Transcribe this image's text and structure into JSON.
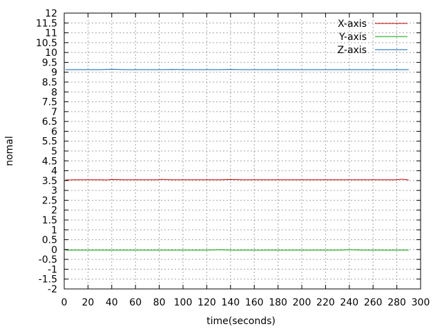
{
  "chart_data": {
    "type": "line",
    "title": "",
    "xlabel": "time(seconds)",
    "ylabel": "nomal",
    "xlim": [
      0,
      300
    ],
    "ylim": [
      -2,
      12
    ],
    "xticks": [
      0,
      20,
      40,
      60,
      80,
      100,
      120,
      140,
      160,
      180,
      200,
      220,
      240,
      260,
      280,
      300
    ],
    "yticks": [
      -2,
      -1.5,
      -1,
      -0.5,
      0,
      0.5,
      1,
      1.5,
      2,
      2.5,
      3,
      3.5,
      4,
      4.5,
      5,
      5.5,
      6,
      6.5,
      7,
      7.5,
      8,
      8.5,
      9,
      9.5,
      10,
      10.5,
      11,
      11.5,
      12
    ],
    "grid": true,
    "legend_position": "top-right",
    "x": [
      1,
      10,
      20,
      30,
      36,
      40,
      50,
      60,
      70,
      80,
      82,
      90,
      100,
      110,
      120,
      130,
      140,
      150,
      160,
      170,
      180,
      190,
      200,
      210,
      220,
      230,
      240,
      250,
      260,
      270,
      280,
      284,
      290
    ],
    "series": [
      {
        "name": "X-axis",
        "color": "#c00000",
        "values": [
          3.53,
          3.54,
          3.54,
          3.54,
          3.53,
          3.55,
          3.54,
          3.54,
          3.54,
          3.54,
          3.56,
          3.54,
          3.54,
          3.54,
          3.54,
          3.54,
          3.55,
          3.54,
          3.54,
          3.54,
          3.54,
          3.54,
          3.54,
          3.54,
          3.54,
          3.54,
          3.54,
          3.54,
          3.54,
          3.54,
          3.54,
          3.57,
          3.53
        ]
      },
      {
        "name": "Y-axis",
        "color": "#00a000",
        "values": [
          -0.03,
          -0.03,
          -0.03,
          -0.03,
          -0.03,
          -0.03,
          -0.03,
          -0.03,
          -0.03,
          -0.03,
          -0.03,
          -0.03,
          -0.03,
          -0.03,
          -0.03,
          -0.01,
          -0.03,
          -0.03,
          -0.03,
          -0.03,
          -0.03,
          -0.03,
          -0.03,
          -0.03,
          -0.03,
          -0.03,
          -0.01,
          -0.03,
          -0.03,
          -0.03,
          -0.03,
          -0.03,
          -0.03
        ]
      },
      {
        "name": "Z-axis",
        "color": "#0060b0",
        "values": [
          9.13,
          9.13,
          9.13,
          9.13,
          9.14,
          9.15,
          9.13,
          9.13,
          9.13,
          9.13,
          9.13,
          9.14,
          9.13,
          9.13,
          9.13,
          9.13,
          9.14,
          9.13,
          9.13,
          9.13,
          9.13,
          9.13,
          9.13,
          9.13,
          9.13,
          9.13,
          9.13,
          9.13,
          9.13,
          9.13,
          9.13,
          9.13,
          9.13
        ]
      }
    ]
  }
}
